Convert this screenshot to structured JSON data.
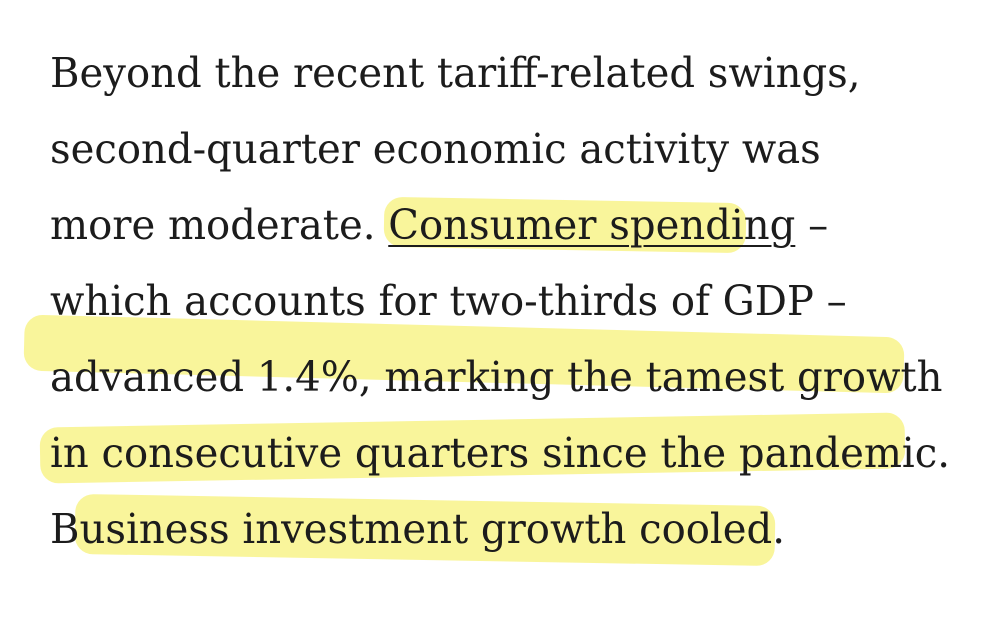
{
  "article": {
    "lines": [
      {
        "text": "Beyond the recent tariff-related swings,"
      },
      {
        "text": "second-quarter economic activity was"
      },
      {
        "before": "more moderate. ",
        "link": "Consumer spending",
        "after": " –"
      },
      {
        "text": "which accounts for two-thirds of GDP –"
      },
      {
        "text": "advanced 1.4%, marking the tamest growth"
      },
      {
        "text": "in consecutive quarters since the pandemic."
      },
      {
        "text": "Business investment growth cooled."
      }
    ]
  },
  "colors": {
    "text": "#1c1c1c",
    "highlight": "#f7f27a",
    "background": "#ffffff"
  }
}
